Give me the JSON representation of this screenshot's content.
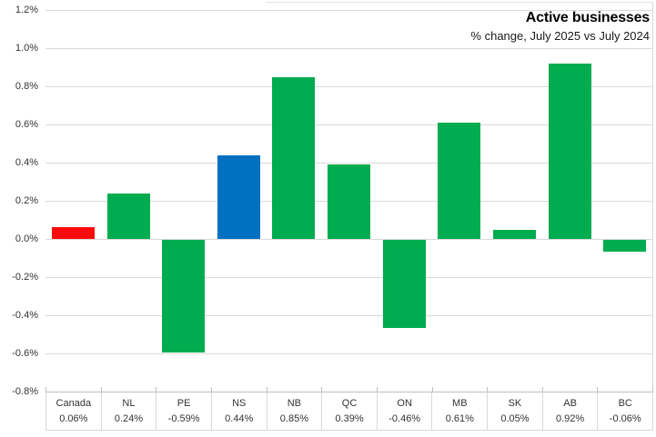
{
  "chart_data": {
    "type": "bar",
    "title": "Active businesses",
    "subtitle": "% change, July 2025 vs July 2024",
    "categories": [
      "Canada",
      "NL",
      "PE",
      "NS",
      "NB",
      "QC",
      "ON",
      "MB",
      "SK",
      "AB",
      "BC"
    ],
    "values": [
      0.06,
      0.24,
      -0.59,
      0.44,
      0.85,
      0.39,
      -0.46,
      0.61,
      0.05,
      0.92,
      -0.06
    ],
    "value_labels": [
      "0.06%",
      "0.24%",
      "-0.59%",
      "0.44%",
      "0.85%",
      "0.39%",
      "-0.46%",
      "0.61%",
      "0.05%",
      "0.92%",
      "-0.06%"
    ],
    "bar_colors": [
      "#fa0c0c",
      "#00ac4f",
      "#00ac4f",
      "#0071c1",
      "#00ac4f",
      "#00ac4f",
      "#00ac4f",
      "#00ac4f",
      "#00ac4f",
      "#00ac4f",
      "#00ac4f"
    ],
    "y_tick_labels": [
      "1.2%",
      "1.0%",
      "0.8%",
      "0.6%",
      "0.4%",
      "0.2%",
      "0.0%",
      "-0.2%",
      "-0.4%",
      "-0.6%",
      "-0.8%"
    ],
    "ylim": [
      -0.8,
      1.2
    ],
    "grid": true,
    "legend": "none",
    "data_table_shown": true,
    "colors": {
      "grid": "#d9d9d9",
      "axis_text": "#333333",
      "positive_default": "#00ac4f",
      "canada_highlight": "#fa0c0c",
      "ns_highlight": "#0071c1"
    }
  }
}
